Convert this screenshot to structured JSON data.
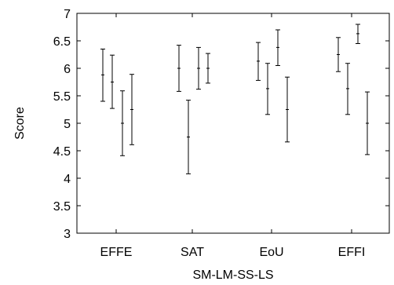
{
  "chart_data": {
    "type": "errorbar",
    "title": "",
    "xlabel": "SM-LM-SS-LS",
    "ylabel": "Score",
    "ylim": [
      3,
      7
    ],
    "yticks": [
      "3",
      "3.5",
      "4",
      "4.5",
      "5",
      "5.5",
      "6",
      "6.5",
      "7"
    ],
    "categories": [
      "EFFE",
      "SAT",
      "EoU",
      "EFFI"
    ],
    "groups": [
      {
        "category": "EFFE",
        "bars": [
          {
            "mean": 5.88,
            "low": 5.4,
            "high": 6.35
          },
          {
            "mean": 5.75,
            "low": 5.27,
            "high": 6.24
          },
          {
            "mean": 5.0,
            "low": 4.41,
            "high": 5.59
          },
          {
            "mean": 5.25,
            "low": 4.61,
            "high": 5.89
          }
        ]
      },
      {
        "category": "SAT",
        "bars": [
          {
            "mean": 6.0,
            "low": 5.58,
            "high": 6.42
          },
          {
            "mean": 4.75,
            "low": 4.08,
            "high": 5.42
          },
          {
            "mean": 6.0,
            "low": 5.62,
            "high": 6.38
          },
          {
            "mean": 6.0,
            "low": 5.73,
            "high": 6.27
          }
        ]
      },
      {
        "category": "EoU",
        "bars": [
          {
            "mean": 6.13,
            "low": 5.78,
            "high": 6.47
          },
          {
            "mean": 5.63,
            "low": 5.16,
            "high": 6.09
          },
          {
            "mean": 6.38,
            "low": 6.05,
            "high": 6.7
          },
          {
            "mean": 5.25,
            "low": 4.66,
            "high": 5.84
          }
        ]
      },
      {
        "category": "EFFI",
        "bars": [
          {
            "mean": 6.25,
            "low": 5.94,
            "high": 6.56
          },
          {
            "mean": 5.63,
            "low": 5.16,
            "high": 6.09
          },
          {
            "mean": 6.63,
            "low": 6.45,
            "high": 6.8
          },
          {
            "mean": 5.0,
            "low": 4.43,
            "high": 5.57
          }
        ]
      }
    ],
    "grid": false,
    "legend": "none"
  }
}
